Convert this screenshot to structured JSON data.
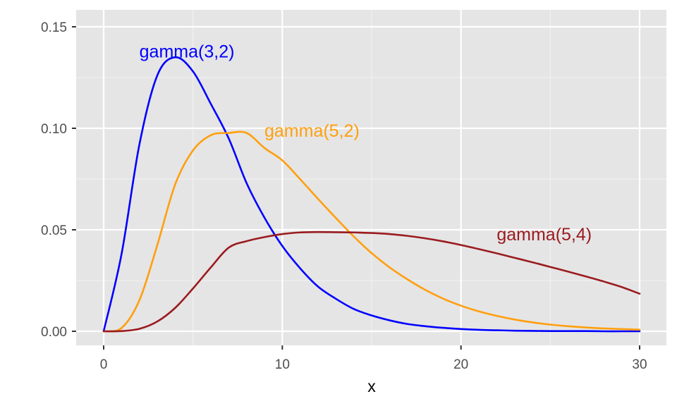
{
  "chart_data": {
    "type": "line",
    "title": "",
    "xlabel": "x",
    "ylabel": "",
    "xlim": [
      0,
      30
    ],
    "ylim": [
      0,
      0.15
    ],
    "x_ticks": [
      0,
      10,
      20,
      30
    ],
    "x_tick_labels": [
      "0",
      "10",
      "20",
      "30"
    ],
    "y_ticks": [
      0,
      0.05,
      0.1,
      0.15
    ],
    "y_tick_labels": [
      "0.00",
      "0.05",
      "0.10",
      "0.15"
    ],
    "grid": true,
    "panel_color": "#e5e5e5",
    "x": [
      0,
      1,
      2,
      3,
      4,
      5,
      6,
      7,
      8,
      9,
      10,
      11,
      12,
      13,
      14,
      15,
      16,
      17,
      18,
      19,
      20,
      21,
      22,
      23,
      24,
      25,
      26,
      27,
      28,
      29,
      30
    ],
    "series": [
      {
        "name": "gamma(3,2)",
        "color": "#0000ff",
        "values": [
          0,
          0.038,
          0.092,
          0.126,
          0.135,
          0.128,
          0.112,
          0.095,
          0.073,
          0.056,
          0.042,
          0.031,
          0.022,
          0.016,
          0.011,
          0.0078,
          0.0054,
          0.0036,
          0.0025,
          0.0017,
          0.0011,
          0.0007,
          0.0005,
          0.0003,
          0.0002,
          0.0001,
          0.0001,
          0.0001,
          0,
          0,
          0
        ]
      },
      {
        "name": "gamma(5,2)",
        "color": "#ff9f0f",
        "values": [
          0,
          0.0016,
          0.0153,
          0.0424,
          0.0723,
          0.0891,
          0.0966,
          0.0977,
          0.0977,
          0.0903,
          0.0842,
          0.0749,
          0.0652,
          0.0558,
          0.0467,
          0.0385,
          0.0315,
          0.0256,
          0.0204,
          0.0161,
          0.0126,
          0.0098,
          0.0076,
          0.0058,
          0.0044,
          0.0033,
          0.0025,
          0.0019,
          0.0014,
          0.0011,
          0.0008
        ]
      },
      {
        "name": "gamma(5,4)",
        "color": "#9b1b1f",
        "values": [
          0,
          0.0001,
          0.0012,
          0.0048,
          0.0115,
          0.0211,
          0.0315,
          0.0412,
          0.0444,
          0.0464,
          0.0479,
          0.0487,
          0.0489,
          0.0488,
          0.0487,
          0.0484,
          0.0479,
          0.047,
          0.0458,
          0.0443,
          0.0425,
          0.0405,
          0.0384,
          0.0362,
          0.034,
          0.0317,
          0.0294,
          0.027,
          0.0245,
          0.0218,
          0.0185
        ]
      }
    ],
    "annotations": [
      {
        "text": "gamma(3,2)",
        "x": 2,
        "y": 0.138,
        "color": "#0000ff"
      },
      {
        "text": "gamma(5,2)",
        "x": 9,
        "y": 0.099,
        "color": "#ff9f0f"
      },
      {
        "text": "gamma(5,4)",
        "x": 22,
        "y": 0.048,
        "color": "#9b1b1f"
      }
    ]
  }
}
